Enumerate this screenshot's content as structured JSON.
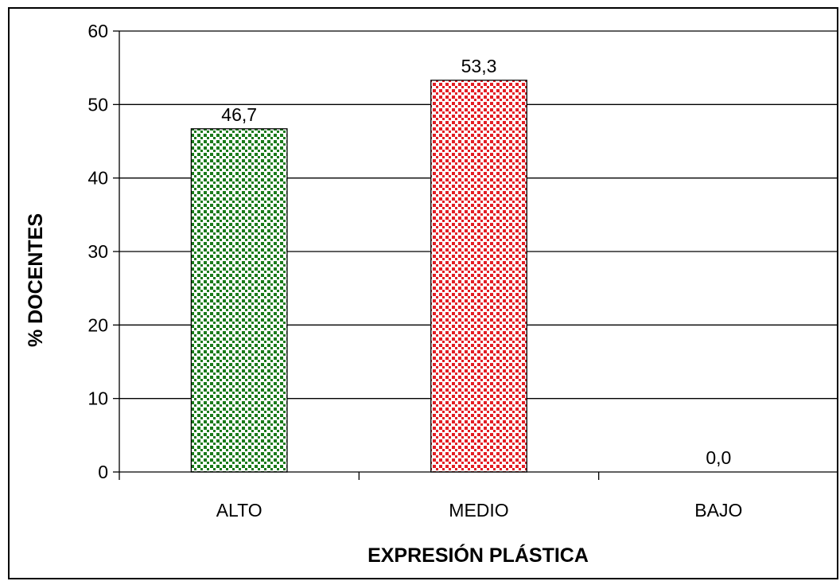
{
  "chart_data": {
    "type": "bar",
    "categories": [
      "ALTO",
      "MEDIO",
      "BAJO"
    ],
    "values": [
      46.7,
      53.3,
      0.0
    ],
    "data_labels": [
      "46,7",
      "53,3",
      "0,0"
    ],
    "xlabel": "EXPRESIÓN PLÁSTICA",
    "ylabel": "% DOCENTES",
    "ylim": [
      0,
      60
    ],
    "yticks": [
      0,
      10,
      20,
      30,
      40,
      50,
      60
    ],
    "ytick_labels": [
      "0",
      "10",
      "20",
      "30",
      "40",
      "50",
      "60"
    ],
    "grid": true,
    "legend": "none",
    "bar_colors": [
      "#1a7a1a",
      "#e31e24",
      "#1a7a1a"
    ],
    "bar_pattern_background": "#ffffff"
  }
}
